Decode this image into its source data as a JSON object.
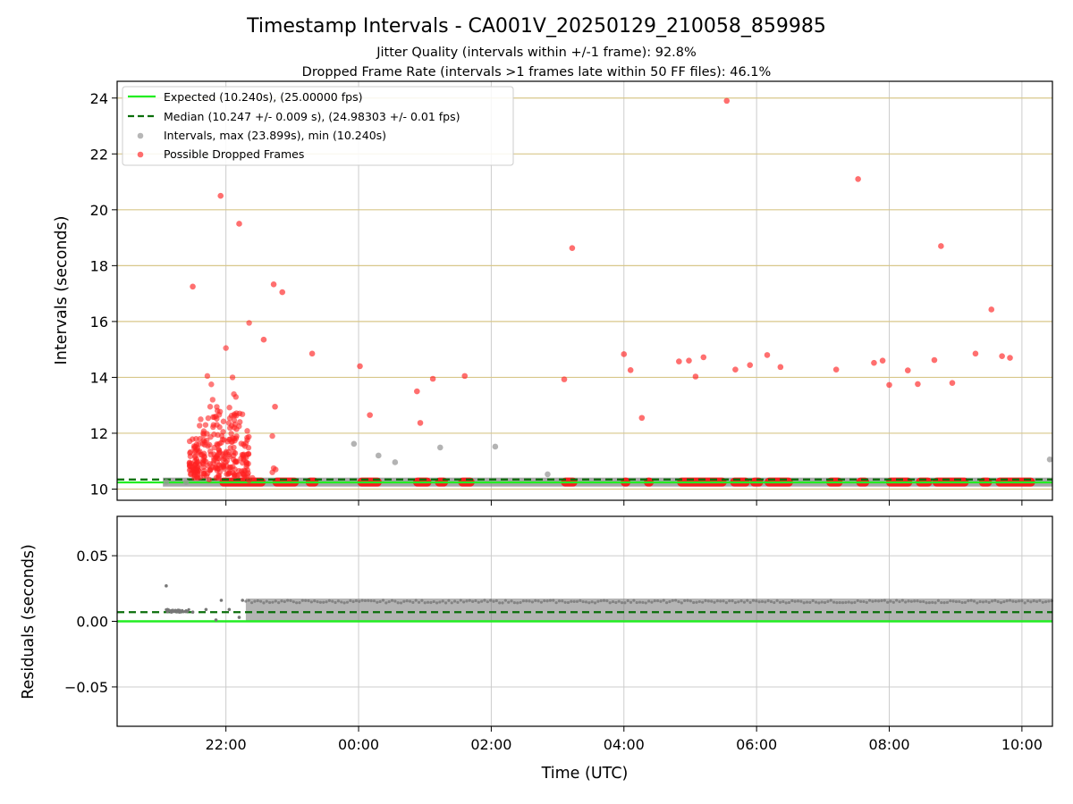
{
  "chart_data": [
    {
      "type": "scatter",
      "title": "Timestamp Intervals - CA001V_20250129_210058_859985",
      "subtitles": [
        "Jitter Quality (intervals within +/-1 frame): 92.8%",
        "Dropped Frame Rate (intervals >1 frames late within 50 FF files): 46.1%"
      ],
      "xlabel": "",
      "ylabel": "Intervals (seconds)",
      "x_ticks": [
        "22:00",
        "00:00",
        "02:00",
        "04:00",
        "06:00",
        "08:00",
        "10:00"
      ],
      "x_tick_hours": [
        22,
        24,
        26,
        28,
        30,
        32,
        34
      ],
      "xlim_hours": [
        20.36,
        34.46
      ],
      "ylim": [
        9.6,
        24.6
      ],
      "y_ticks": [
        10,
        12,
        14,
        16,
        18,
        20,
        22,
        24
      ],
      "grid": true,
      "legend_position": "top-left",
      "lines": [
        {
          "name": "Expected (10.240s), (25.00000 fps)",
          "y": 10.24,
          "color": "#22ee22",
          "style": "solid"
        },
        {
          "name": "Median (10.247 +/- 0.009 s), (24.98303 +/- 0.01 fps)",
          "y": 10.247,
          "color": "#0a6e0a",
          "style": "dashed"
        }
      ],
      "series": [
        {
          "name": "Intervals, max (23.899s), min (10.240s)",
          "color": "#999999",
          "x_hours": [
            21.1,
            21.4,
            23.93,
            24.3,
            24.55,
            25.23,
            26.06,
            26.85,
            34.42
          ],
          "y": [
            10.26,
            10.25,
            11.62,
            11.2,
            10.96,
            11.49,
            11.52,
            10.53,
            11.06
          ]
        },
        {
          "name": "Possible Dropped Frames",
          "color": "#ff2222",
          "x_hours": [
            21.5,
            21.92,
            22.2,
            22.57,
            22.72,
            22.74,
            22.85,
            23.3,
            24.02,
            24.17,
            24.88,
            24.93,
            25.12,
            25.6,
            27.1,
            27.22,
            28.0,
            28.27,
            28.1,
            28.83,
            28.98,
            29.08,
            29.2,
            29.55,
            29.68,
            29.9,
            30.16,
            30.36,
            31.2,
            31.53,
            31.77,
            31.9,
            32.0,
            32.28,
            32.43,
            32.68,
            32.78,
            32.95,
            33.3,
            33.54,
            33.7,
            33.82
          ],
          "y": [
            17.25,
            20.5,
            19.5,
            15.35,
            17.33,
            12.95,
            17.05,
            14.85,
            14.4,
            12.65,
            13.5,
            12.37,
            13.95,
            14.05,
            13.93,
            18.63,
            14.83,
            12.55,
            14.26,
            14.57,
            14.6,
            14.03,
            14.72,
            23.9,
            14.28,
            14.44,
            14.8,
            14.37,
            14.28,
            21.1,
            14.52,
            14.6,
            13.73,
            14.25,
            13.76,
            14.62,
            18.7,
            13.8,
            14.85,
            16.43,
            14.76,
            14.7
          ]
        }
      ],
      "dense_bands_x_hours": [
        [
          21.9,
          22.6
        ],
        [
          22.7,
          23.1
        ],
        [
          23.2,
          23.4
        ],
        [
          23.98,
          24.35
        ],
        [
          24.82,
          25.1
        ],
        [
          25.15,
          25.35
        ],
        [
          25.5,
          25.75
        ],
        [
          27.05,
          27.3
        ],
        [
          27.95,
          28.1
        ],
        [
          28.3,
          28.45
        ],
        [
          28.8,
          29.55
        ],
        [
          29.6,
          29.9
        ],
        [
          29.9,
          30.1
        ],
        [
          30.12,
          30.55
        ],
        [
          31.05,
          31.3
        ],
        [
          31.5,
          31.7
        ],
        [
          31.95,
          32.35
        ],
        [
          32.4,
          32.65
        ],
        [
          32.65,
          33.2
        ],
        [
          33.35,
          33.55
        ],
        [
          33.6,
          34.2
        ]
      ],
      "dense_band_y": 10.25
    },
    {
      "type": "scatter",
      "title": "",
      "xlabel": "Time (UTC)",
      "ylabel": "Residuals (seconds)",
      "x_ticks": [
        "22:00",
        "00:00",
        "02:00",
        "04:00",
        "06:00",
        "08:00",
        "10:00"
      ],
      "x_tick_hours": [
        22,
        24,
        26,
        28,
        30,
        32,
        34
      ],
      "xlim_hours": [
        20.36,
        34.46
      ],
      "ylim": [
        -0.08,
        0.08
      ],
      "y_ticks": [
        0.05,
        0.0,
        -0.05
      ],
      "y_tick_labels": [
        "0.05",
        "0.00",
        "−0.05"
      ],
      "grid": true,
      "lines": [
        {
          "name": "expected",
          "y": 0.0,
          "color": "#22ee22",
          "style": "solid"
        },
        {
          "name": "median",
          "y": 0.007,
          "color": "#0a6e0a",
          "style": "dashed"
        }
      ],
      "residual_points": {
        "color": "#777777",
        "x_hours": [
          21.1,
          21.12,
          21.18,
          21.25,
          21.3,
          21.4,
          21.5,
          21.7,
          21.85,
          21.93,
          22.05,
          22.2,
          22.25
        ],
        "y": [
          0.027,
          0.009,
          0.007,
          0.008,
          0.007,
          0.008,
          0.007,
          0.009,
          0.001,
          0.016,
          0.009,
          0.003,
          0.016
        ]
      },
      "residual_band": {
        "x_hours": [
          22.3,
          34.46
        ],
        "y_range": [
          0.0,
          0.016
        ],
        "color": "#777777"
      }
    }
  ]
}
